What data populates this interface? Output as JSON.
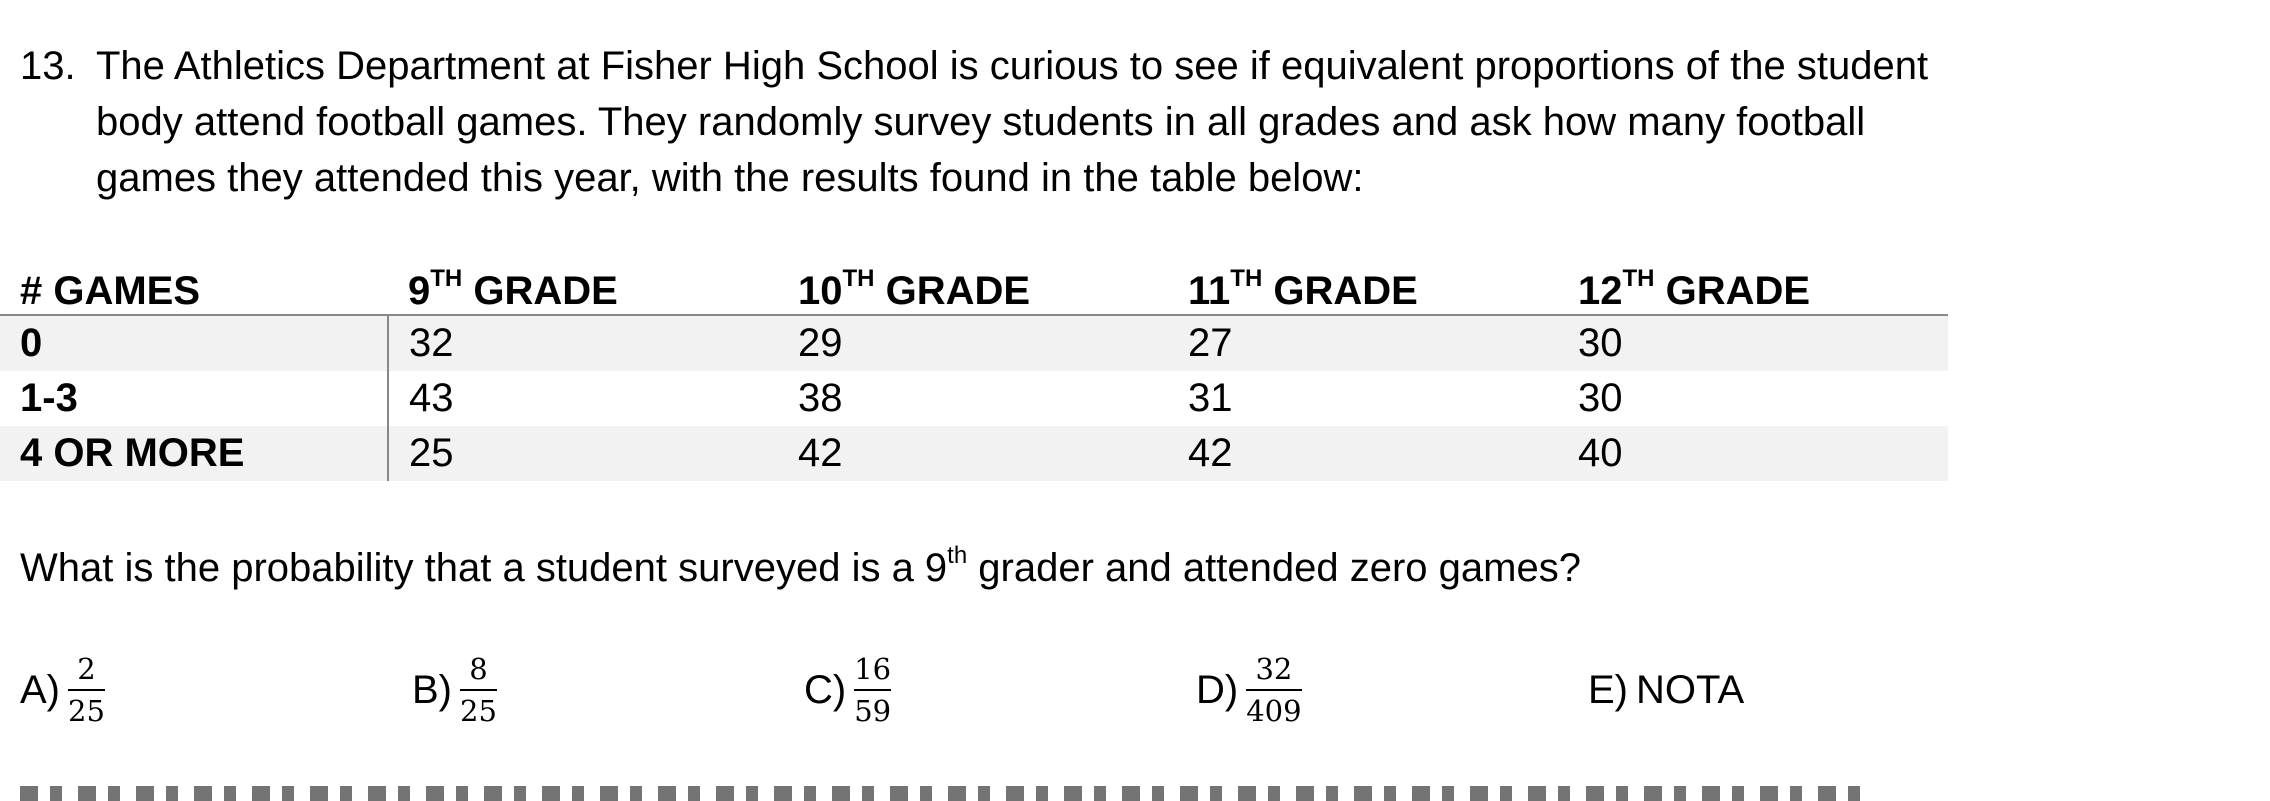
{
  "problem": {
    "number": "13.",
    "text": "The Athletics Department at Fisher High School is curious to see if equivalent proportions of the student body attend football games. They randomly survey students in all grades and ask how many football games they attended this year, with the results found in the table below:"
  },
  "table": {
    "headers": [
      {
        "main": "# GAMES",
        "sup": "",
        "rest": ""
      },
      {
        "main": "9",
        "sup": "TH",
        "rest": " GRADE"
      },
      {
        "main": "10",
        "sup": "TH",
        "rest": " GRADE"
      },
      {
        "main": "11",
        "sup": "TH",
        "rest": " GRADE"
      },
      {
        "main": "12",
        "sup": "TH",
        "rest": " GRADE"
      }
    ],
    "rows": [
      {
        "label": "0",
        "cells": [
          "32",
          "29",
          "27",
          "30"
        ]
      },
      {
        "label": "1-3",
        "cells": [
          "43",
          "38",
          "31",
          "30"
        ]
      },
      {
        "label": "4 OR MORE",
        "cells": [
          "25",
          "42",
          "42",
          "40"
        ]
      }
    ]
  },
  "question": {
    "before": "What is the probability that a student surveyed is a 9",
    "sup": "th",
    "after": " grader and attended zero games?"
  },
  "choices": [
    {
      "letter": "A)",
      "num": "2",
      "den": "25",
      "text": ""
    },
    {
      "letter": "B)",
      "num": "8",
      "den": "25",
      "text": ""
    },
    {
      "letter": "C)",
      "num": "16",
      "den": "59",
      "text": ""
    },
    {
      "letter": "D)",
      "num": "32",
      "den": "409",
      "text": ""
    },
    {
      "letter": "E)",
      "num": "",
      "den": "",
      "text": "NOTA"
    }
  ]
}
